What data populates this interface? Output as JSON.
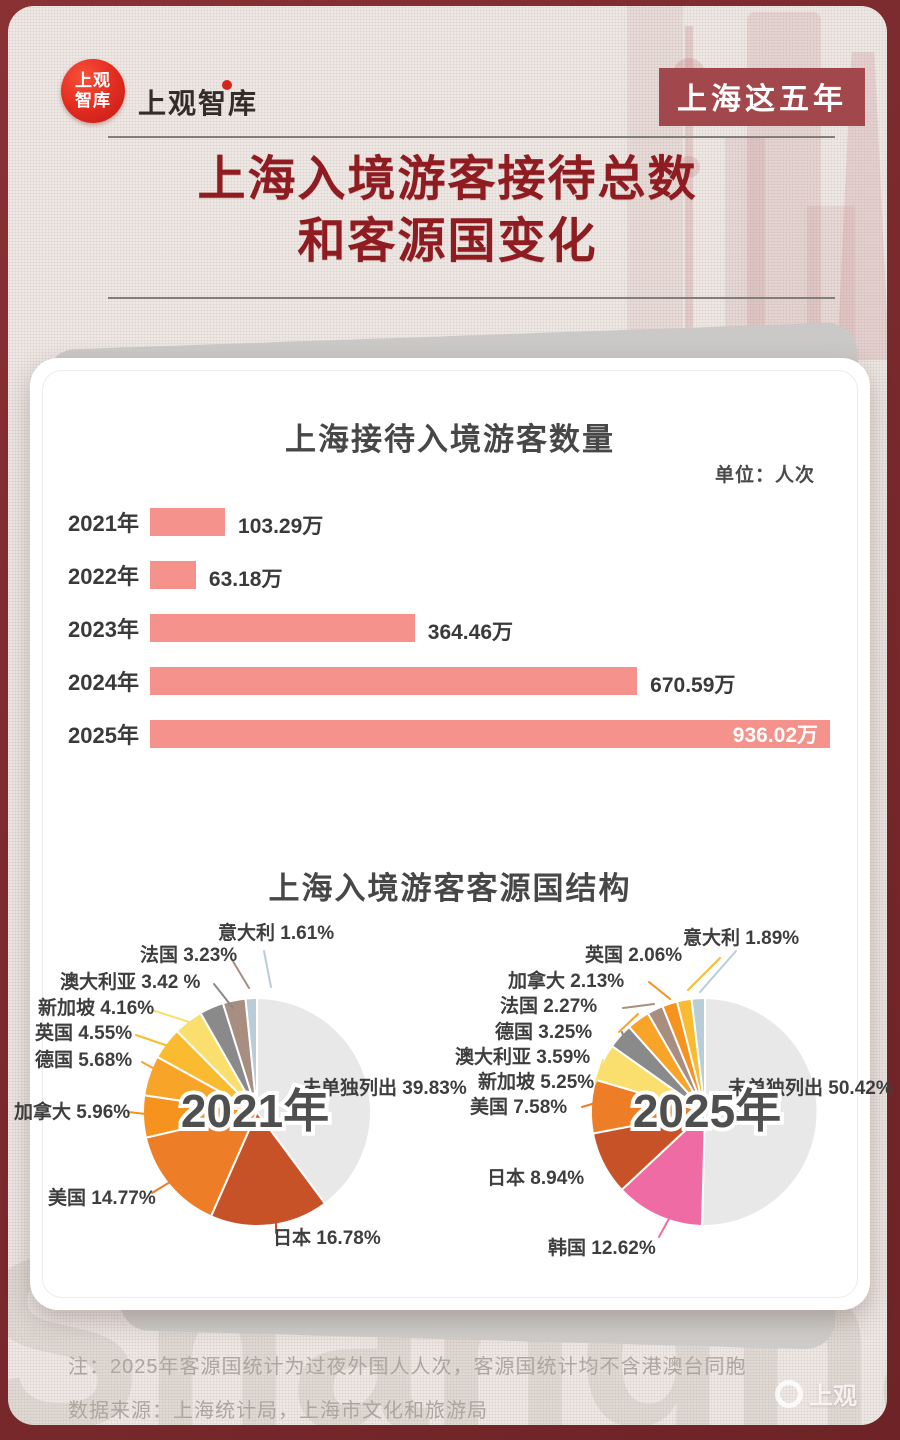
{
  "header": {
    "logo_line1": "上观",
    "logo_line2": "智库",
    "wordmark": "上观智库",
    "badge": "上海这五年",
    "title_line1": "上海入境游客接待总数",
    "title_line2": "和客源国变化"
  },
  "colors": {
    "page_bg": "#7c2b2e",
    "panel_bg": "#f1ece9",
    "title_red": "#8e1c21",
    "badge_bg": "#a2474b",
    "bar_pink": "#f5928c",
    "text_dark": "#3a3a3a",
    "note_gray": "#aea59f"
  },
  "chart_data": [
    {
      "type": "bar",
      "orientation": "horizontal",
      "title": "上海接待入境游客数量",
      "unit_label": "单位：人次",
      "categories": [
        "2021年",
        "2022年",
        "2023年",
        "2024年",
        "2025年"
      ],
      "values": [
        103.29,
        63.18,
        364.46,
        670.59,
        936.02
      ],
      "value_labels": [
        "103.29万",
        "63.18万",
        "364.46万",
        "670.59万",
        "936.02万"
      ],
      "xlim": [
        0,
        936.02
      ],
      "bar_color": "#f5928c",
      "last_label_inside": true
    },
    {
      "type": "pie",
      "title": "上海入境游客客源国结构",
      "pies": [
        {
          "center_label": "2021年",
          "slices": [
            {
              "name": "未单独列出",
              "value": 39.83,
              "label": "未单独列出 39.83%",
              "color": "#e9e8e8"
            },
            {
              "name": "日本",
              "value": 16.78,
              "label": "日本 16.78%",
              "color": "#c75227"
            },
            {
              "name": "美国",
              "value": 14.77,
              "label": "美国 14.77%",
              "color": "#ed7d26"
            },
            {
              "name": "加拿大",
              "value": 5.96,
              "label": "加拿大 5.96%",
              "color": "#f6921e"
            },
            {
              "name": "德国",
              "value": 5.68,
              "label": "德国  5.68%",
              "color": "#f8a428"
            },
            {
              "name": "英国",
              "value": 4.55,
              "label": "英国  4.55%",
              "color": "#fabb30"
            },
            {
              "name": "新加坡",
              "value": 4.16,
              "label": "新加坡 4.16%",
              "color": "#fbdf6e"
            },
            {
              "name": "澳大利亚",
              "value": 3.42,
              "label": "澳大利亚 3.42 %",
              "color": "#8a8a8a"
            },
            {
              "name": "法国",
              "value": 3.23,
              "label": "法国  3.23%",
              "color": "#a78e81"
            },
            {
              "name": "意大利",
              "value": 1.61,
              "label": "意大利  1.61%",
              "color": "#b9cdd8"
            }
          ]
        },
        {
          "center_label": "2025年",
          "slices": [
            {
              "name": "未单独列出",
              "value": 50.42,
              "label": "未单独列出 50.42%",
              "color": "#e9e8e8"
            },
            {
              "name": "韩国",
              "value": 12.62,
              "label": "韩国  12.62%",
              "color": "#ee6ba3"
            },
            {
              "name": "日本",
              "value": 8.94,
              "label": "日本  8.94%",
              "color": "#c75227"
            },
            {
              "name": "美国",
              "value": 7.58,
              "label": "美国 7.58%",
              "color": "#ed7d26"
            },
            {
              "name": "新加坡",
              "value": 5.25,
              "label": "新加坡 5.25%",
              "color": "#fbdf6e"
            },
            {
              "name": "澳大利亚",
              "value": 3.59,
              "label": "澳大利亚  3.59%",
              "color": "#8a8a8a"
            },
            {
              "name": "德国",
              "value": 3.25,
              "label": "德国  3.25%",
              "color": "#f8a428"
            },
            {
              "name": "法国",
              "value": 2.27,
              "label": "法国  2.27%",
              "color": "#a78e81"
            },
            {
              "name": "加拿大",
              "value": 2.13,
              "label": "加拿大  2.13%",
              "color": "#f6921e"
            },
            {
              "name": "英国",
              "value": 2.06,
              "label": "英国  2.06%",
              "color": "#fabb30"
            },
            {
              "name": "意大利",
              "value": 1.89,
              "label": "意大利 1.89%",
              "color": "#b9cdd8"
            }
          ]
        }
      ]
    }
  ],
  "footer": {
    "note1": "注：2025年客源国统计为过夜外国人人次，客源国统计均不含港澳台同胞",
    "note2": "数据来源：上海统计局，上海市文化和旅游局",
    "watermark": "上观",
    "ghost_word": "Shanghai"
  }
}
